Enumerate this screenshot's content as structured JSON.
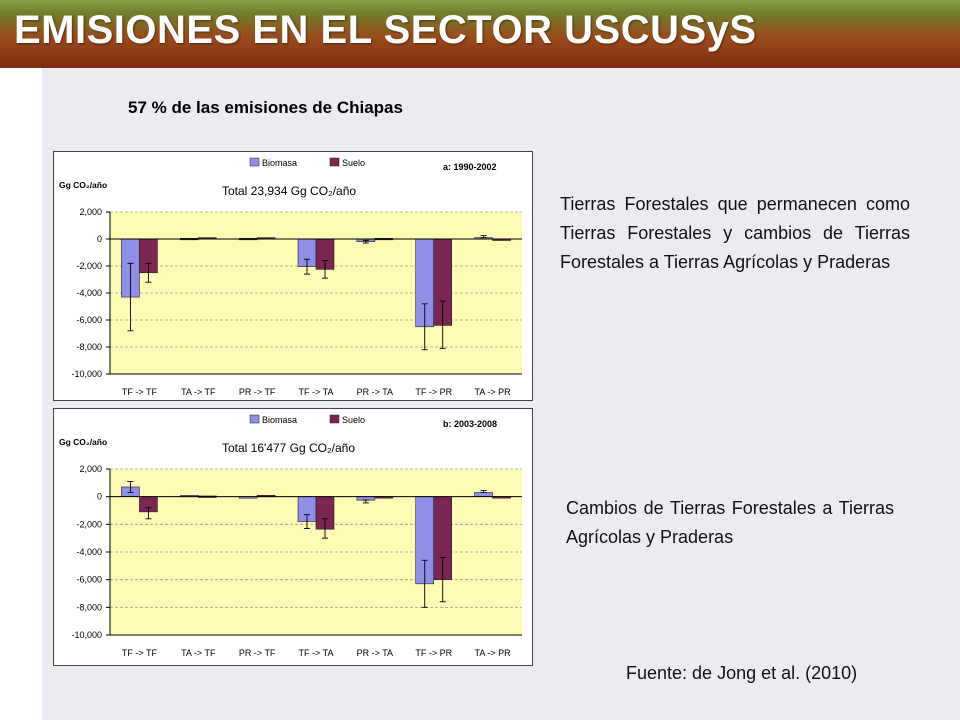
{
  "slide": {
    "title": "EMISIONES EN EL SECTOR USCUSyS",
    "subtitle": "57 %  de las emisiones de Chiapas",
    "description_1": "Tierras Forestales que permanecen como Tierras Forestales y cambios de Tierras Forestales a Tierras Agrícolas y Praderas",
    "description_2": "Cambios de Tierras Forestales a Tierras Agrícolas y Praderas",
    "source": "Fuente: de Jong et al. (2010)"
  },
  "colors": {
    "biomasa": "#8f8fe8",
    "suelo": "#7b2552",
    "plot_bg": "#fdfbb4",
    "gridline": "#a0a0a0"
  },
  "chart_data": [
    {
      "type": "bar",
      "title": "Total 23,934 Gg CO₂/año",
      "panel_label": "a: 1990-2002",
      "ylabel": "Gg CO₂/año",
      "categories": [
        "TF -> TF",
        "TA -> TF",
        "PR -> TF",
        "TF -> TA",
        "PR -> TA",
        "TF -> PR",
        "TA -> PR"
      ],
      "series": [
        {
          "name": "Biomasa",
          "values": [
            -4300,
            50,
            50,
            -2050,
            -200,
            -6500,
            100
          ],
          "error_low": [
            -6800,
            null,
            null,
            -2600,
            -300,
            -8200,
            null
          ],
          "error_high": [
            -1800,
            null,
            null,
            -1500,
            -100,
            -4800,
            250
          ]
        },
        {
          "name": "Suelo",
          "values": [
            -2500,
            100,
            100,
            -2250,
            50,
            -6400,
            0
          ],
          "error_low": [
            -3200,
            null,
            null,
            -2900,
            null,
            -8100,
            null
          ],
          "error_high": [
            -1800,
            null,
            null,
            -1600,
            null,
            -4600,
            null
          ]
        }
      ],
      "ylim": [
        -10000,
        2000
      ],
      "yticks": [
        -10000,
        -8000,
        -6000,
        -4000,
        -2000,
        0,
        2000
      ],
      "ytick_labels": [
        "-10,000",
        "-8,000",
        "-6,000",
        "-4,000",
        "-2,000",
        "0",
        "2,000"
      ],
      "grid": true,
      "legend": "top"
    },
    {
      "type": "bar",
      "title": "Total 16'477 Gg CO₂/año",
      "panel_label": "b: 2003-2008",
      "ylabel": "Gg CO₂/año",
      "categories": [
        "TF -> TF",
        "TA -> TF",
        "PR -> TF",
        "TF -> TA",
        "PR -> TA",
        "TF -> PR",
        "TA -> PR"
      ],
      "series": [
        {
          "name": "Biomasa",
          "values": [
            700,
            100,
            0,
            -1800,
            -250,
            -6300,
            300
          ],
          "error_low": [
            300,
            null,
            null,
            -2300,
            -450,
            -8000,
            null
          ],
          "error_high": [
            1100,
            null,
            null,
            -1300,
            null,
            -4600,
            450
          ]
        },
        {
          "name": "Suelo",
          "values": [
            -1100,
            50,
            100,
            -2350,
            0,
            -6000,
            -50
          ],
          "error_low": [
            -1600,
            null,
            null,
            -3000,
            null,
            -7600,
            null
          ],
          "error_high": [
            -800,
            null,
            null,
            -1600,
            null,
            -4400,
            null
          ]
        }
      ],
      "ylim": [
        -10000,
        2000
      ],
      "yticks": [
        -10000,
        -8000,
        -6000,
        -4000,
        -2000,
        0,
        2000
      ],
      "ytick_labels": [
        "-10,000",
        "-8,000",
        "-6,000",
        "-4,000",
        "-2,000",
        "0",
        "2,000"
      ],
      "grid": true,
      "legend": "top"
    }
  ]
}
